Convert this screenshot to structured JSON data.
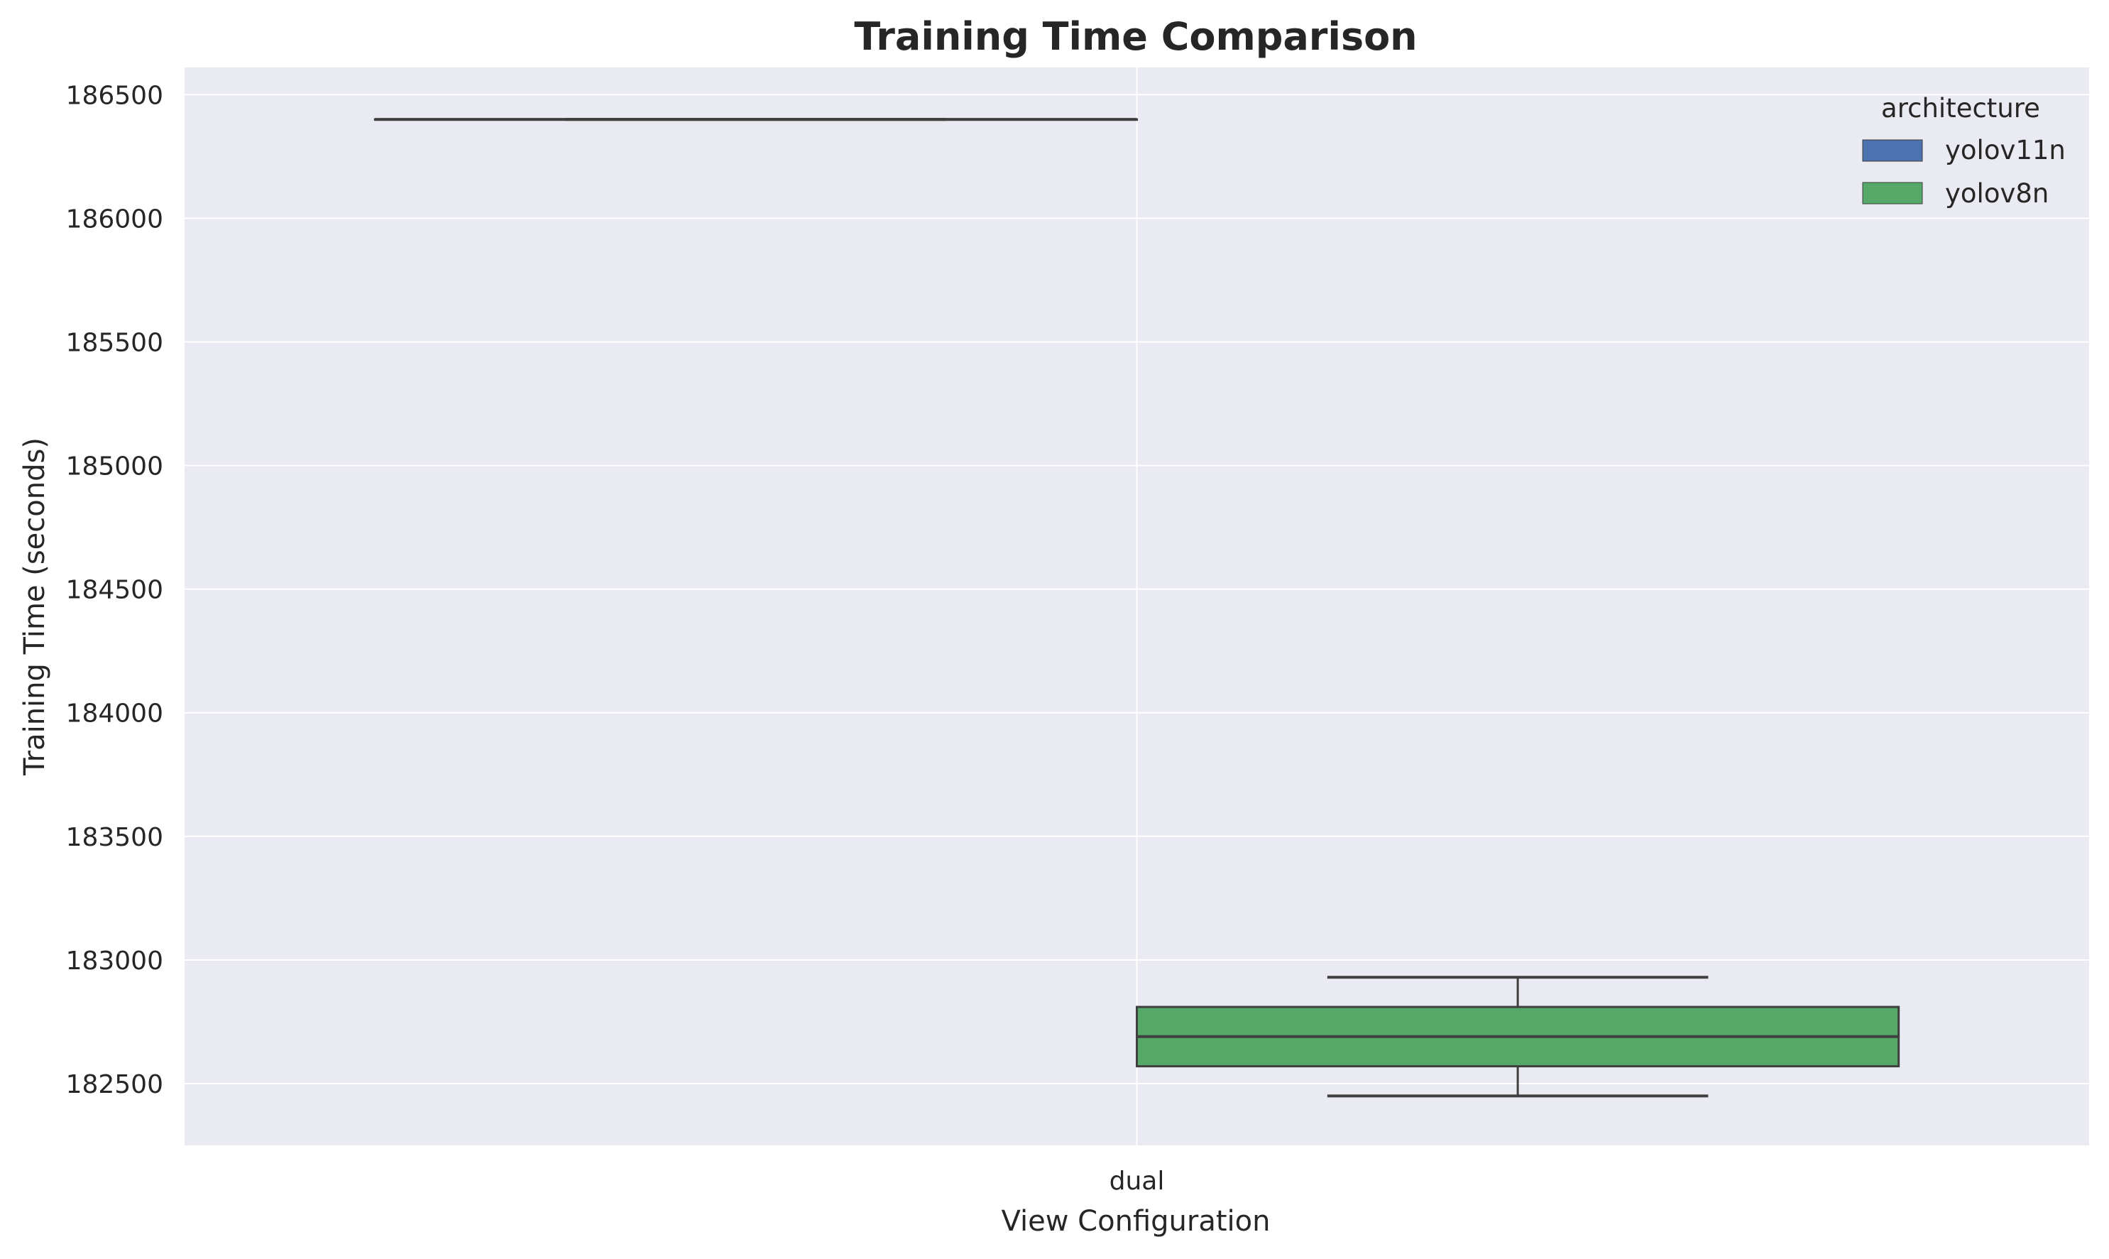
{
  "chart_data": {
    "type": "box",
    "title": "Training Time Comparison",
    "xlabel": "View Configuration",
    "ylabel": "Training Time (seconds)",
    "categories": [
      "dual"
    ],
    "ylim": [
      182250,
      186610
    ],
    "yticks": [
      182500,
      183000,
      183500,
      184000,
      184500,
      185000,
      185500,
      186000,
      186500
    ],
    "grid": true,
    "legend": {
      "title": "architecture",
      "placement": "top-right",
      "entries": [
        {
          "label": "yolov11n",
          "color": "#4c72b0"
        },
        {
          "label": "yolov8n",
          "color": "#55a868"
        }
      ]
    },
    "series": [
      {
        "name": "yolov11n",
        "color": "#4c72b0",
        "boxes": [
          {
            "category": "dual",
            "whisker_low": 186400,
            "q1": 186400,
            "median": 186400,
            "q3": 186400,
            "whisker_high": 186400
          }
        ]
      },
      {
        "name": "yolov8n",
        "color": "#55a868",
        "boxes": [
          {
            "category": "dual",
            "whisker_low": 182450,
            "q1": 182570,
            "median": 182690,
            "q3": 182810,
            "whisker_high": 182930
          }
        ]
      }
    ]
  }
}
